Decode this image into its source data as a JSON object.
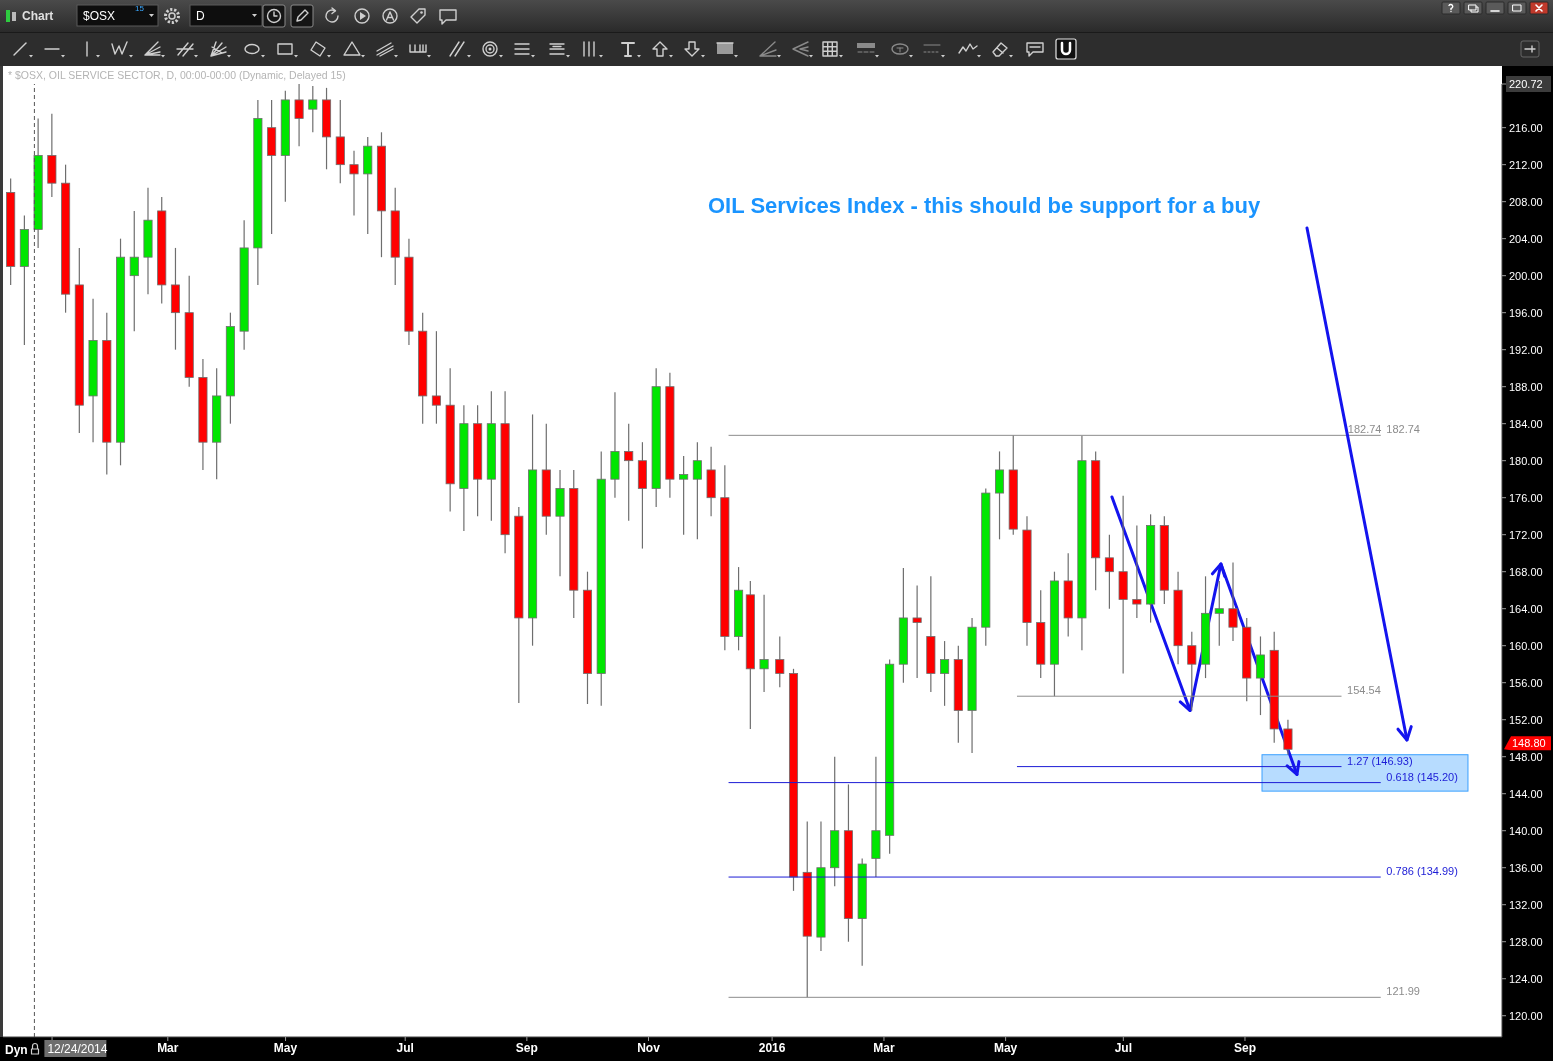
{
  "chart_data": {
    "type": "candlestick",
    "title": "OIL Services Index - this should be support for a buy",
    "subtitle": "* $OSX, OIL SERVICE SECTOR, D, 00:00-00:00 (Dynamic, Delayed 15)",
    "x": [
      "2014-12-12",
      "2014-12-19",
      "2014-12-26",
      "2015-01-02",
      "2015-01-09",
      "2015-01-16",
      "2015-01-23",
      "2015-01-30",
      "2015-02-06",
      "2015-02-13",
      "2015-02-20",
      "2015-02-27",
      "2015-03-06",
      "2015-03-13",
      "2015-03-20",
      "2015-03-27",
      "2015-04-03",
      "2015-04-10",
      "2015-04-17",
      "2015-04-24",
      "2015-05-01",
      "2015-05-08",
      "2015-05-15",
      "2015-05-22",
      "2015-05-29",
      "2015-06-05",
      "2015-06-12",
      "2015-06-19",
      "2015-06-26",
      "2015-07-03",
      "2015-07-10",
      "2015-07-17",
      "2015-07-24",
      "2015-07-31",
      "2015-08-07",
      "2015-08-14",
      "2015-08-21",
      "2015-08-28",
      "2015-09-04",
      "2015-09-11",
      "2015-09-18",
      "2015-09-25",
      "2015-10-02",
      "2015-10-09",
      "2015-10-16",
      "2015-10-23",
      "2015-10-30",
      "2015-11-06",
      "2015-11-13",
      "2015-11-20",
      "2015-11-27",
      "2015-12-04",
      "2015-12-11",
      "2015-12-18",
      "2015-12-24",
      "2015-12-31",
      "2016-01-08",
      "2016-01-15",
      "2016-01-22",
      "2016-01-29",
      "2016-02-05",
      "2016-02-12",
      "2016-02-19",
      "2016-02-26",
      "2016-03-04",
      "2016-03-11",
      "2016-03-18",
      "2016-03-25",
      "2016-04-01",
      "2016-04-08",
      "2016-04-15",
      "2016-04-22",
      "2016-04-29",
      "2016-05-06",
      "2016-05-13",
      "2016-05-20",
      "2016-05-27",
      "2016-06-03",
      "2016-06-10",
      "2016-06-17",
      "2016-06-24",
      "2016-07-01",
      "2016-07-08",
      "2016-07-15",
      "2016-07-22",
      "2016-07-29",
      "2016-08-05",
      "2016-08-12",
      "2016-08-19",
      "2016-08-26",
      "2016-09-02",
      "2016-09-09",
      "2016-09-16",
      "2016-09-23"
    ],
    "ohlc": [
      [
        209,
        210.5,
        199,
        201
      ],
      [
        201,
        206.5,
        192.5,
        205
      ],
      [
        205,
        217,
        203,
        213
      ],
      [
        213,
        217.5,
        208.5,
        210
      ],
      [
        210,
        212,
        196,
        198
      ],
      [
        199,
        203,
        183,
        186
      ],
      [
        187,
        197.5,
        182,
        193
      ],
      [
        193,
        196,
        178.5,
        182
      ],
      [
        182,
        204,
        179.5,
        202
      ],
      [
        200,
        207,
        194,
        202
      ],
      [
        202,
        209.5,
        198,
        206
      ],
      [
        207,
        208.5,
        197,
        199
      ],
      [
        199,
        203,
        192,
        196
      ],
      [
        196,
        200,
        188,
        189
      ],
      [
        189,
        191,
        179,
        182
      ],
      [
        182,
        190,
        178,
        187
      ],
      [
        187,
        196,
        184,
        194.5
      ],
      [
        194,
        206,
        192,
        203
      ],
      [
        203,
        219,
        199,
        217
      ],
      [
        216,
        219,
        204.5,
        213
      ],
      [
        213,
        220,
        208,
        219
      ],
      [
        219,
        220.72,
        214,
        217
      ],
      [
        218,
        220.5,
        215.5,
        219
      ],
      [
        219,
        220.3,
        211.5,
        215
      ],
      [
        215,
        219,
        210,
        212
      ],
      [
        212,
        213.5,
        206.5,
        211
      ],
      [
        211,
        215,
        204.5,
        214
      ],
      [
        214,
        215.5,
        202,
        207
      ],
      [
        207,
        209.5,
        199,
        202
      ],
      [
        202,
        204,
        192.5,
        194
      ],
      [
        194,
        196,
        184,
        187
      ],
      [
        187,
        194,
        184,
        186
      ],
      [
        186,
        190,
        174.5,
        177.5
      ],
      [
        177,
        186,
        172.4,
        184
      ],
      [
        184,
        186,
        174,
        178
      ],
      [
        178,
        187.5,
        173.5,
        184
      ],
      [
        184,
        187.5,
        170,
        172
      ],
      [
        174,
        175,
        153.8,
        163
      ],
      [
        163,
        185,
        160,
        179
      ],
      [
        179,
        184,
        172,
        174
      ],
      [
        174,
        179,
        167.5,
        177
      ],
      [
        177,
        179,
        163,
        166
      ],
      [
        166,
        168,
        153.7,
        157
      ],
      [
        157,
        181,
        153.5,
        178
      ],
      [
        178,
        187.4,
        176,
        181
      ],
      [
        181,
        184,
        173.5,
        180
      ],
      [
        180,
        182,
        170.5,
        177
      ],
      [
        177,
        190,
        175,
        188
      ],
      [
        188,
        189.5,
        176,
        178
      ],
      [
        178,
        180.5,
        172,
        178.5
      ],
      [
        178,
        182,
        171.5,
        180
      ],
      [
        179,
        181.5,
        174,
        176
      ],
      [
        176,
        179.5,
        159.5,
        161
      ],
      [
        161,
        168.5,
        159.5,
        166
      ],
      [
        165.5,
        167,
        151,
        157.5
      ],
      [
        157.5,
        165.5,
        155,
        158.5
      ],
      [
        158.5,
        161,
        155.5,
        157
      ],
      [
        157,
        157.5,
        133.5,
        135
      ],
      [
        135.5,
        141,
        121.99,
        128.6
      ],
      [
        128.5,
        141,
        127,
        136
      ],
      [
        136,
        148,
        134,
        140
      ],
      [
        140,
        145,
        128,
        130.5
      ],
      [
        130.5,
        137,
        125.4,
        136.4
      ],
      [
        137,
        148,
        135,
        140
      ],
      [
        139.5,
        158.5,
        137.5,
        158
      ],
      [
        158,
        168.4,
        156,
        163
      ],
      [
        163,
        166.5,
        156.5,
        162.5
      ],
      [
        161,
        167.5,
        155,
        157
      ],
      [
        157,
        160.5,
        153.5,
        158.5
      ],
      [
        158.5,
        160,
        149.5,
        153
      ],
      [
        153,
        163,
        148.4,
        162
      ],
      [
        162,
        177,
        160,
        176.5
      ],
      [
        176.5,
        181,
        171.5,
        179
      ],
      [
        179,
        182.74,
        172,
        172.6
      ],
      [
        172.5,
        174,
        160,
        162.5
      ],
      [
        162.5,
        166,
        156.5,
        158
      ],
      [
        158,
        168,
        154.54,
        167
      ],
      [
        167,
        170,
        161,
        163
      ],
      [
        163,
        182.7,
        159.5,
        180
      ],
      [
        180,
        181,
        166,
        169.5
      ],
      [
        169.5,
        172,
        164,
        168
      ],
      [
        168,
        176.2,
        157,
        165
      ],
      [
        165,
        173,
        163,
        164.5
      ],
      [
        164.5,
        174.2,
        162.5,
        173
      ],
      [
        173,
        174,
        164.5,
        166
      ],
      [
        166,
        168,
        158,
        160
      ],
      [
        160,
        161.5,
        153,
        158
      ],
      [
        158,
        167.5,
        156.5,
        163.5
      ],
      [
        163.5,
        167,
        160,
        164
      ],
      [
        164,
        169,
        160.5,
        162
      ],
      [
        162,
        163,
        154,
        156.5
      ],
      [
        156.5,
        161,
        152.5,
        159
      ],
      [
        159.5,
        161.5,
        149.5,
        151
      ],
      [
        151,
        152,
        148.2,
        148.8
      ]
    ],
    "colors": [
      "#ff0000",
      "#00e600",
      "#00e600",
      "#ff0000",
      "#ff0000",
      "#ff0000",
      "#00e600",
      "#ff0000",
      "#00e600",
      "#00e600",
      "#00e600",
      "#ff0000",
      "#ff0000",
      "#ff0000",
      "#ff0000",
      "#00e600",
      "#00e600",
      "#00e600",
      "#00e600",
      "#ff0000",
      "#00e600",
      "#ff0000",
      "#00e600",
      "#ff0000",
      "#ff0000",
      "#ff0000",
      "#00e600",
      "#ff0000",
      "#ff0000",
      "#ff0000",
      "#ff0000",
      "#ff0000",
      "#ff0000",
      "#00e600",
      "#ff0000",
      "#00e600",
      "#ff0000",
      "#ff0000",
      "#00e600",
      "#ff0000",
      "#00e600",
      "#ff0000",
      "#ff0000",
      "#00e600",
      "#00e600",
      "#ff0000",
      "#ff0000",
      "#00e600",
      "#ff0000",
      "#00e600",
      "#00e600",
      "#ff0000",
      "#ff0000",
      "#00e600",
      "#ff0000",
      "#00e600",
      "#ff0000",
      "#ff0000",
      "#ff0000",
      "#00e600",
      "#00e600",
      "#ff0000",
      "#00e600",
      "#00e600",
      "#00e600",
      "#00e600",
      "#ff0000",
      "#ff0000",
      "#00e600",
      "#ff0000",
      "#00e600",
      "#00e600",
      "#00e600",
      "#ff0000",
      "#ff0000",
      "#ff0000",
      "#00e600",
      "#ff0000",
      "#00e600",
      "#ff0000",
      "#ff0000",
      "#ff0000",
      "#ff0000",
      "#00e600",
      "#ff0000",
      "#ff0000",
      "#ff0000",
      "#00e600",
      "#00e600",
      "#ff0000",
      "#ff0000",
      "#00e600",
      "#ff0000",
      "#ff0000"
    ],
    "color": "#6e6e6e",
    "xlim": [
      "2014-12-08",
      "2017-01-10"
    ],
    "xticks": [
      {
        "value": "2015-01-02",
        "label": null
      },
      {
        "value": "2015-03-02",
        "label": "Mar"
      },
      {
        "value": "2015-05-01",
        "label": "May"
      },
      {
        "value": "2015-07-01",
        "label": "Jul"
      },
      {
        "value": "2015-09-01",
        "label": "Sep"
      },
      {
        "value": "2015-11-02",
        "label": "Nov"
      },
      {
        "value": "2016-01-04",
        "label": "2016"
      },
      {
        "value": "2016-03-01",
        "label": "Mar"
      },
      {
        "value": "2016-05-02",
        "label": "May"
      },
      {
        "value": "2016-07-01",
        "label": "Jul"
      },
      {
        "value": "2016-09-01",
        "label": "Sep"
      }
    ],
    "ylim": [
      117.7,
      220.72
    ],
    "yticks": [
      {
        "value": 120,
        "label": "120.00"
      },
      {
        "value": 124,
        "label": "124.00"
      },
      {
        "value": 128,
        "label": "128.00"
      },
      {
        "value": 132,
        "label": "132.00"
      },
      {
        "value": 136,
        "label": "136.00"
      },
      {
        "value": 140,
        "label": "140.00"
      },
      {
        "value": 144,
        "label": "144.00"
      },
      {
        "value": 148,
        "label": "148.00"
      },
      {
        "value": 152,
        "label": "152.00"
      },
      {
        "value": 156,
        "label": "156.00"
      },
      {
        "value": 160,
        "label": "160.00"
      },
      {
        "value": 164,
        "label": "164.00"
      },
      {
        "value": 168,
        "label": "168.00"
      },
      {
        "value": 172,
        "label": "172.00"
      },
      {
        "value": 176,
        "label": "176.00"
      },
      {
        "value": 180,
        "label": "180.00"
      },
      {
        "value": 184,
        "label": "184.00"
      },
      {
        "value": 188,
        "label": "188.00"
      },
      {
        "value": 192,
        "label": "192.00"
      },
      {
        "value": 196,
        "label": "196.00"
      },
      {
        "value": 200,
        "label": "200.00"
      },
      {
        "value": 204,
        "label": "204.00"
      },
      {
        "value": 208,
        "label": "208.00"
      },
      {
        "value": 212,
        "label": "212.00"
      },
      {
        "value": 216,
        "label": "216.00"
      },
      220.72
    ],
    "series": [
      {
        "type": "line",
        "name": "182.74",
        "x": [
          "2015-12-13",
          "2016-11-09"
        ],
        "values": [
          182.74,
          182.74
        ],
        "color": "#8c8c8c"
      },
      {
        "type": "line",
        "name": "154.54",
        "x": [
          "2016-05-08",
          "2016-10-20"
        ],
        "values": [
          154.54,
          154.54
        ],
        "color": "#8c8c8c"
      },
      {
        "type": "line",
        "name": "1.27 (146.93)",
        "x": [
          "2016-05-08",
          "2016-10-20"
        ],
        "values": [
          146.93,
          146.93
        ],
        "color": "#1c1cd6"
      },
      {
        "type": "line",
        "name": "0.618 (145.20)",
        "x": [
          "2015-12-13",
          "2016-11-09"
        ],
        "values": [
          145.2,
          145.2
        ],
        "color": "#1c1cd6"
      },
      {
        "type": "line",
        "name": "0.786 (134.99)",
        "x": [
          "2015-12-13",
          "2016-11-09"
        ],
        "values": [
          134.99,
          134.99
        ],
        "color": "#1c1cd6"
      },
      {
        "type": "line",
        "name": "121.99",
        "x": [
          "2015-12-13",
          "2016-11-09"
        ],
        "values": [
          121.99,
          121.99
        ],
        "color": "#8c8c8c"
      }
    ],
    "ref_lines": [
      {
        "axis": "x",
        "value": "2014-12-24",
        "label": "12/24/2014",
        "line_style": "dashed",
        "color": "#555555"
      }
    ],
    "annotations": [
      "Chart",
      "$OSX",
      "15",
      "D",
      "Dyn",
      "148.80",
      {
        "text": "182.74",
        "x": "2016-11-01",
        "y": 182.74
      }
    ]
  }
}
